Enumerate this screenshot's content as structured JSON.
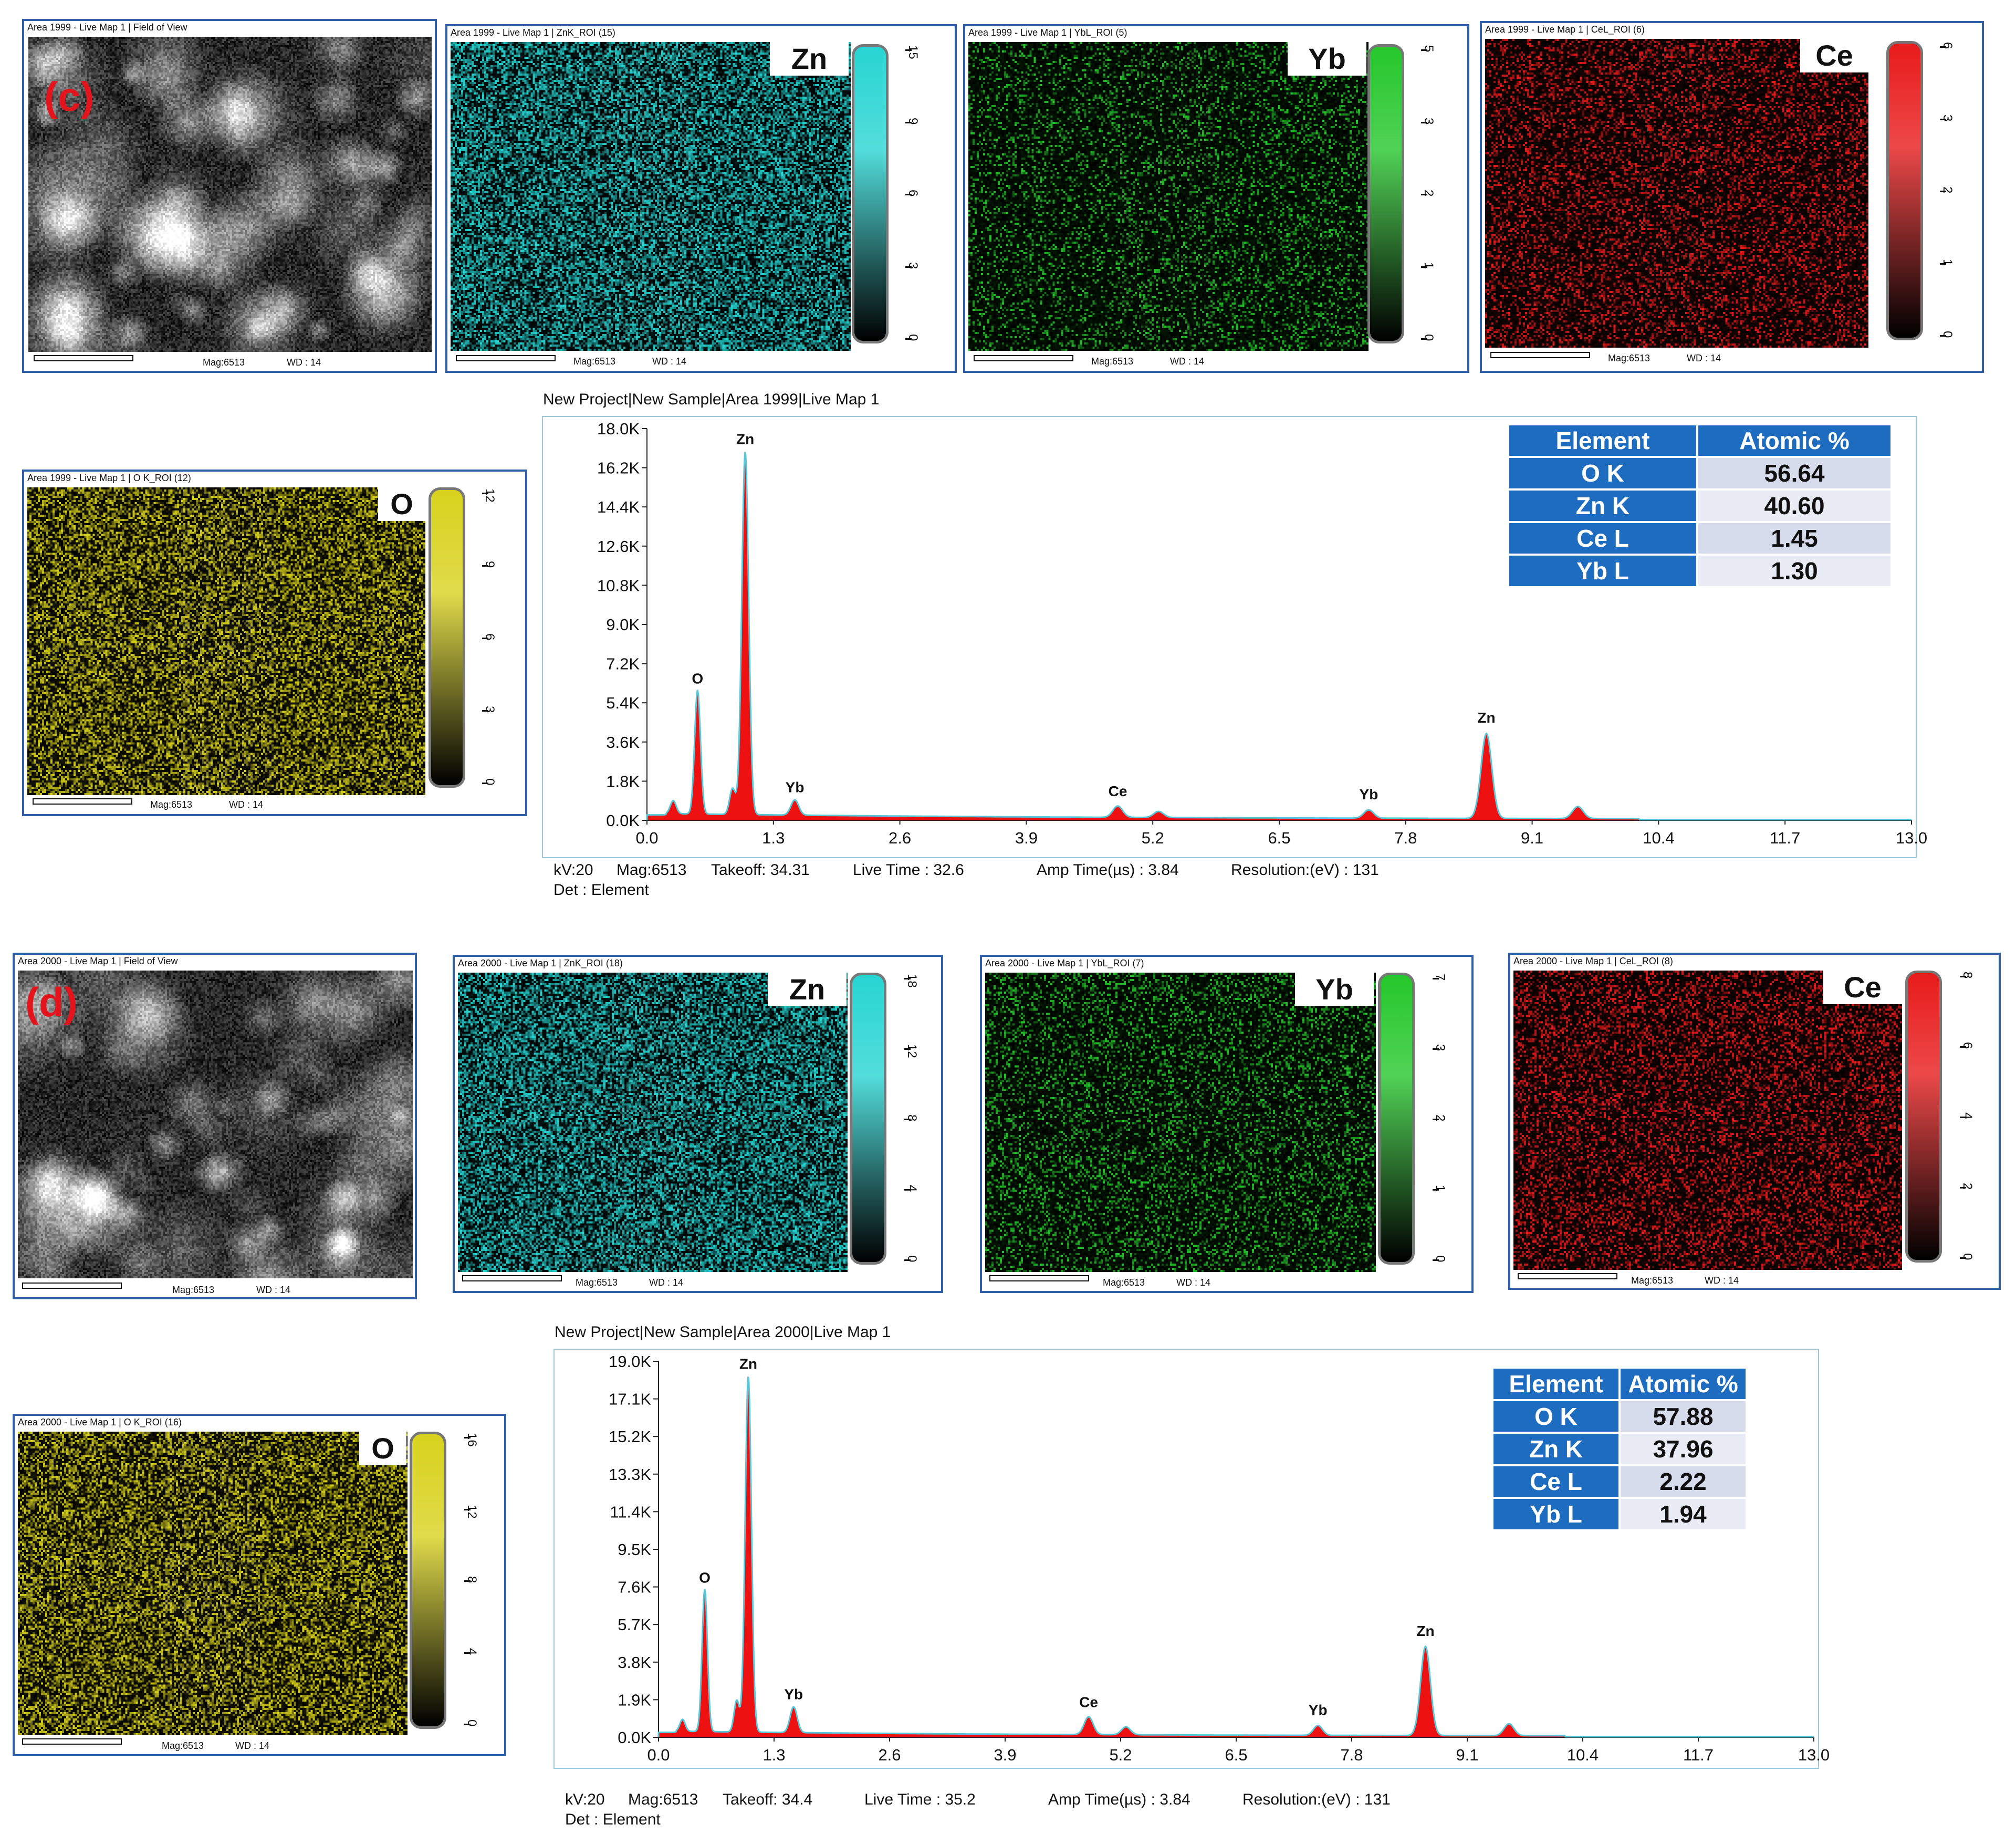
{
  "set_c": {
    "label": "(c)",
    "maps": [
      {
        "title": "Area 1999 - Live Map 1 | Field of View",
        "kind": "sem",
        "element": "",
        "seed": 11
      },
      {
        "title": "Area 1999 - Live Map 1 | ZnK_ROI (15)",
        "kind": "map",
        "element": "Zn",
        "color": "#27d5d2",
        "density": 0.55,
        "seed": 21,
        "ticks": [
          "15",
          "9",
          "6",
          "3",
          "0"
        ]
      },
      {
        "title": "Area 1999 - Live Map 1 | YbL_ROI (5)",
        "kind": "map",
        "element": "Yb",
        "color": "#25c72b",
        "density": 0.22,
        "seed": 31,
        "ticks": [
          "5",
          "3",
          "2",
          "1",
          "0"
        ]
      },
      {
        "title": "Area 1999 - Live Map 1 | CeL_ROI (6)",
        "kind": "map",
        "element": "Ce",
        "color": "#e81b1b",
        "density": 0.3,
        "seed": 41,
        "ticks": [
          "6",
          "3",
          "2",
          "1",
          "0"
        ]
      },
      {
        "title": "Area 1999 - Live Map 1 | O K_ROI (12)",
        "kind": "map",
        "element": "O",
        "color": "#d8d21d",
        "density": 0.5,
        "seed": 51,
        "ticks": [
          "12",
          "9",
          "6",
          "3",
          "0"
        ]
      }
    ],
    "mag": "Mag:6513",
    "wd": "WD : 14",
    "spectrum_title": "New Project|New Sample|Area 1999|Live Map 1",
    "footer_line1": [
      "kV:20",
      "Mag:6513",
      "Takeoff: 34.31",
      "Live Time : 32.6",
      "Amp Time(µs) : 3.84",
      "Resolution:(eV) : 131"
    ],
    "footer_line2": "Det : Element",
    "table": {
      "headers": [
        "Element",
        "Atomic %"
      ],
      "rows": [
        [
          "O K",
          "56.64"
        ],
        [
          "Zn K",
          "40.60"
        ],
        [
          "Ce L",
          "1.45"
        ],
        [
          "Yb L",
          "1.30"
        ]
      ]
    }
  },
  "set_d": {
    "label": "(d)",
    "maps": [
      {
        "title": "Area 2000 - Live Map 1 | Field of View",
        "kind": "sem",
        "element": "",
        "seed": 12
      },
      {
        "title": "Area 2000 - Live Map 1 | ZnK_ROI (18)",
        "kind": "map",
        "element": "Zn",
        "color": "#27d5d2",
        "density": 0.55,
        "seed": 22,
        "ticks": [
          "18",
          "12",
          "8",
          "4",
          "0"
        ]
      },
      {
        "title": "Area 2000 - Live Map 1 | YbL_ROI (7)",
        "kind": "map",
        "element": "Yb",
        "color": "#25c72b",
        "density": 0.26,
        "seed": 32,
        "ticks": [
          "7",
          "3",
          "2",
          "1",
          "0"
        ]
      },
      {
        "title": "Area 2000 - Live Map 1 | CeL_ROI (8)",
        "kind": "map",
        "element": "Ce",
        "color": "#e81b1b",
        "density": 0.33,
        "seed": 42,
        "ticks": [
          "8",
          "6",
          "4",
          "2",
          "0"
        ]
      },
      {
        "title": "Area 2000 - Live Map 1 | O K_ROI (16)",
        "kind": "map",
        "element": "O",
        "color": "#d8d21d",
        "density": 0.5,
        "seed": 52,
        "ticks": [
          "16",
          "12",
          "8",
          "4",
          "0"
        ]
      }
    ],
    "mag": "Mag:6513",
    "wd": "WD : 14",
    "spectrum_title": "New Project|New Sample|Area 2000|Live Map 1",
    "footer_line1": [
      "kV:20",
      "Mag:6513",
      "Takeoff: 34.4",
      "Live Time : 35.2",
      "Amp Time(µs) : 3.84",
      "Resolution:(eV) : 131"
    ],
    "footer_line2": "Det : Element",
    "table": {
      "headers": [
        "Element",
        "Atomic %"
      ],
      "rows": [
        [
          "O K",
          "57.88"
        ],
        [
          "Zn K",
          "37.96"
        ],
        [
          "Ce L",
          "2.22"
        ],
        [
          "Yb L",
          "1.94"
        ]
      ]
    }
  },
  "chart_data": [
    {
      "type": "line",
      "title": "New Project|New Sample|Area 1999|Live Map 1",
      "xlabel": "",
      "ylabel": "",
      "xlim": [
        0.0,
        13.0
      ],
      "ylim": [
        0,
        18000
      ],
      "x_ticks": [
        "0.0",
        "1.3",
        "2.6",
        "3.9",
        "5.2",
        "6.5",
        "7.8",
        "9.1",
        "10.4",
        "11.7",
        "13.0"
      ],
      "y_ticks": [
        "0.0K",
        "1.8K",
        "3.6K",
        "5.4K",
        "7.2K",
        "9.0K",
        "10.8K",
        "12.6K",
        "14.4K",
        "16.2K",
        "18.0K"
      ],
      "baseline": 250,
      "peaks": [
        {
          "x": 0.27,
          "y": 600,
          "w": 0.03,
          "label": ""
        },
        {
          "x": 0.52,
          "y": 5700,
          "w": 0.03,
          "label": "O"
        },
        {
          "x": 0.88,
          "y": 1200,
          "w": 0.03,
          "label": ""
        },
        {
          "x": 1.01,
          "y": 16700,
          "w": 0.035,
          "label": "Zn"
        },
        {
          "x": 1.52,
          "y": 700,
          "w": 0.04,
          "label": "Yb"
        },
        {
          "x": 4.84,
          "y": 520,
          "w": 0.05,
          "label": "Ce"
        },
        {
          "x": 5.26,
          "y": 280,
          "w": 0.05,
          "label": ""
        },
        {
          "x": 7.42,
          "y": 380,
          "w": 0.05,
          "label": "Yb"
        },
        {
          "x": 8.63,
          "y": 3900,
          "w": 0.055,
          "label": "Zn"
        },
        {
          "x": 9.57,
          "y": 550,
          "w": 0.055,
          "label": ""
        }
      ],
      "fill_color": "#ee1111",
      "line_color": "#58c8d8"
    },
    {
      "type": "line",
      "title": "New Project|New Sample|Area 2000|Live Map 1",
      "xlabel": "",
      "ylabel": "",
      "xlim": [
        0.0,
        13.0
      ],
      "ylim": [
        0,
        19000
      ],
      "x_ticks": [
        "0.0",
        "1.3",
        "2.6",
        "3.9",
        "5.2",
        "6.5",
        "7.8",
        "9.1",
        "10.4",
        "11.7",
        "13.0"
      ],
      "y_ticks": [
        "0.0K",
        "1.9K",
        "3.8K",
        "5.7K",
        "7.6K",
        "9.5K",
        "11.4K",
        "13.3K",
        "15.2K",
        "17.1K",
        "19.0K"
      ],
      "baseline": 250,
      "peaks": [
        {
          "x": 0.27,
          "y": 600,
          "w": 0.03,
          "label": ""
        },
        {
          "x": 0.52,
          "y": 7200,
          "w": 0.03,
          "label": "O"
        },
        {
          "x": 0.88,
          "y": 1600,
          "w": 0.03,
          "label": ""
        },
        {
          "x": 1.01,
          "y": 18000,
          "w": 0.035,
          "label": "Zn"
        },
        {
          "x": 1.52,
          "y": 1300,
          "w": 0.04,
          "label": "Yb"
        },
        {
          "x": 4.84,
          "y": 900,
          "w": 0.05,
          "label": "Ce"
        },
        {
          "x": 5.26,
          "y": 400,
          "w": 0.05,
          "label": ""
        },
        {
          "x": 7.42,
          "y": 500,
          "w": 0.05,
          "label": "Yb"
        },
        {
          "x": 8.63,
          "y": 4500,
          "w": 0.055,
          "label": "Zn"
        },
        {
          "x": 9.57,
          "y": 600,
          "w": 0.055,
          "label": ""
        }
      ],
      "fill_color": "#ee1111",
      "line_color": "#58c8d8"
    }
  ]
}
